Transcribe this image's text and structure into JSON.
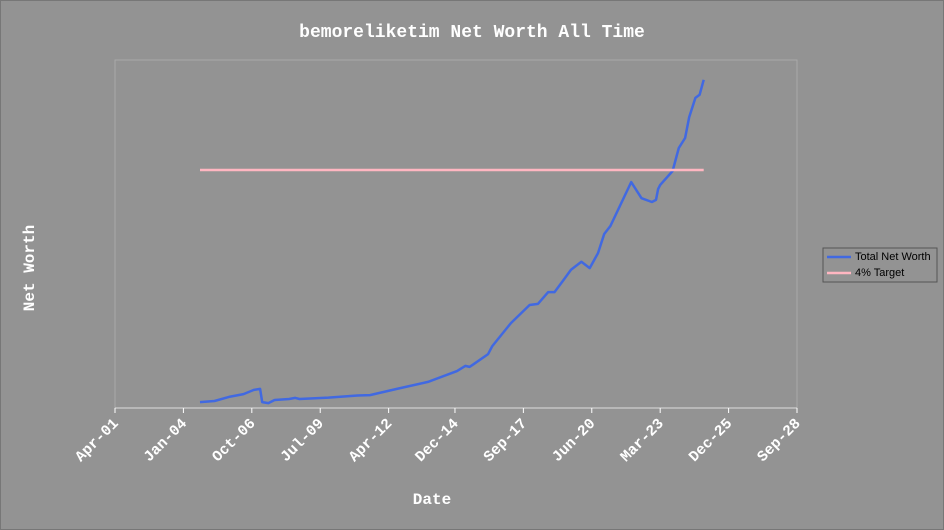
{
  "chart_data": {
    "type": "line",
    "title": "bemoreliketim Net Worth All Time",
    "xlabel": "Date",
    "ylabel": "Net Worth",
    "xlim": [
      "Apr-01",
      "Sep-28"
    ],
    "xticks": [
      "Apr-01",
      "Jan-04",
      "Oct-06",
      "Jul-09",
      "Apr-12",
      "Dec-14",
      "Sep-17",
      "Jun-20",
      "Mar-23",
      "Dec-25",
      "Sep-28"
    ],
    "ylim": [
      0,
      100
    ],
    "legend": "right",
    "series": [
      {
        "name": "Total Net Worth",
        "color": "#4169e1",
        "x": [
          "Sep-04",
          "Apr-05",
          "Nov-05",
          "Jun-06",
          "Nov-06",
          "Feb-07",
          "Mar-07",
          "Jun-07",
          "Sep-07",
          "Apr-08",
          "Jul-08",
          "Sep-08",
          "Nov-09",
          "Jan-11",
          "Jul-11",
          "Aug-12",
          "Nov-13",
          "Jan-15",
          "May-15",
          "Jul-15",
          "Sep-15",
          "Apr-16",
          "Jun-16",
          "Mar-17",
          "Dec-17",
          "Apr-18",
          "Sep-18",
          "Dec-18",
          "Apr-19",
          "Aug-19",
          "Jan-20",
          "May-20",
          "Sep-20",
          "Dec-20",
          "Mar-21",
          "Jan-22",
          "Jun-22",
          "Nov-22",
          "Jan-23",
          "Feb-23",
          "Mar-23",
          "Sep-23",
          "Dec-23",
          "Mar-24",
          "May-24",
          "Aug-24",
          "Oct-24",
          "Dec-24"
        ],
        "values": [
          1.7,
          2.0,
          3.2,
          4.0,
          5.2,
          5.5,
          1.7,
          1.4,
          2.3,
          2.6,
          2.9,
          2.6,
          3.0,
          3.6,
          3.7,
          5.5,
          7.5,
          10.6,
          12.1,
          11.8,
          12.6,
          15.5,
          17.8,
          24.4,
          29.6,
          29.9,
          33.3,
          33.3,
          36.5,
          39.7,
          42.0,
          40.2,
          44.5,
          50.0,
          52.3,
          64.9,
          60.3,
          59.2,
          59.8,
          62.9,
          64.1,
          68.1,
          74.7,
          77.6,
          83.6,
          89.1,
          90.0,
          94.3
        ]
      },
      {
        "name": "4% Target",
        "color": "#ffb6c1",
        "x": [
          "Sep-04",
          "Dec-24"
        ],
        "values": [
          68.4,
          68.4
        ]
      }
    ]
  }
}
